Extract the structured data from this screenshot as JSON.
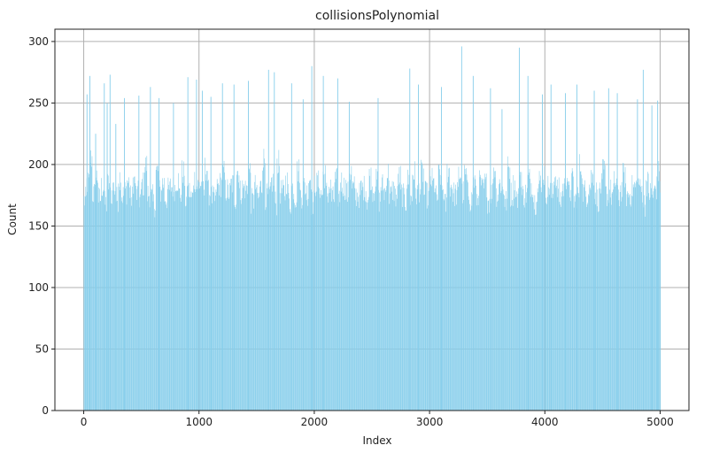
{
  "chart_data": {
    "type": "bar",
    "title": "collisionsPolynomial",
    "xlabel": "Index",
    "ylabel": "Count",
    "xlim": [
      -250,
      5250
    ],
    "ylim": [
      0,
      310
    ],
    "xticks": [
      0,
      1000,
      2000,
      3000,
      4000,
      5000
    ],
    "yticks": [
      0,
      50,
      100,
      150,
      200,
      250,
      300
    ],
    "grid": true,
    "bar_color": "#87ceeb",
    "series": [
      {
        "x_start": 0,
        "x_step": 25,
        "values": [
          171,
          185,
          205,
          176,
          190,
          172,
          182,
          168,
          184,
          177,
          181,
          172,
          190,
          175,
          178,
          186,
          173,
          187,
          176,
          172,
          184,
          199,
          176,
          173,
          168,
          195,
          178,
          185,
          173,
          179,
          182,
          181,
          187,
          176,
          194,
          172,
          178,
          173,
          188,
          183,
          184,
          177,
          197,
          177,
          173,
          171,
          182,
          184,
          193,
          179,
          177,
          184,
          173,
          195,
          178,
          181,
          180,
          195,
          170,
          182,
          173,
          182,
          205,
          174,
          175,
          186,
          169,
          201,
          178,
          177,
          186,
          169,
          181,
          174,
          195,
          175,
          182,
          177,
          189,
          169,
          184,
          185,
          176,
          191,
          177,
          181,
          172,
          187,
          174,
          186,
          182,
          176,
          194,
          181,
          175,
          175,
          180,
          181,
          172,
          190,
          180,
          186,
          171,
          183,
          178,
          193,
          175,
          179,
          174,
          190,
          176,
          170,
          187,
          172,
          193,
          176,
          180,
          193,
          176,
          175,
          187,
          184,
          173,
          191,
          180,
          167,
          195,
          183,
          176,
          176,
          192,
          177,
          191,
          177,
          171,
          186,
          173,
          185,
          180,
          184,
          171,
          177,
          197,
          176,
          184,
          180,
          170,
          197,
          176,
          183,
          172,
          192,
          175,
          176,
          188,
          184,
          170,
          179,
          187,
          192,
          178,
          182,
          175,
          191,
          179,
          172,
          181,
          190,
          177,
          187,
          171,
          175,
          199,
          178,
          176,
          183,
          190,
          177,
          172,
          182,
          194,
          176,
          178,
          175,
          186,
          173,
          180,
          191,
          175,
          176,
          181,
          182,
          185,
          179,
          168,
          185,
          177,
          175,
          181,
          193,
          180
        ]
      }
    ],
    "spikes": [
      {
        "x": 25,
        "y": 257
      },
      {
        "x": 50,
        "y": 272
      },
      {
        "x": 100,
        "y": 225
      },
      {
        "x": 175,
        "y": 266
      },
      {
        "x": 200,
        "y": 250
      },
      {
        "x": 225,
        "y": 273
      },
      {
        "x": 275,
        "y": 233
      },
      {
        "x": 350,
        "y": 254
      },
      {
        "x": 475,
        "y": 256
      },
      {
        "x": 575,
        "y": 263
      },
      {
        "x": 650,
        "y": 254
      },
      {
        "x": 775,
        "y": 250
      },
      {
        "x": 900,
        "y": 271
      },
      {
        "x": 975,
        "y": 269
      },
      {
        "x": 1025,
        "y": 260
      },
      {
        "x": 1100,
        "y": 255
      },
      {
        "x": 1200,
        "y": 266
      },
      {
        "x": 1300,
        "y": 265
      },
      {
        "x": 1425,
        "y": 268
      },
      {
        "x": 1600,
        "y": 277
      },
      {
        "x": 1650,
        "y": 275
      },
      {
        "x": 1800,
        "y": 266
      },
      {
        "x": 1900,
        "y": 253
      },
      {
        "x": 1975,
        "y": 280
      },
      {
        "x": 2075,
        "y": 272
      },
      {
        "x": 2200,
        "y": 270
      },
      {
        "x": 2300,
        "y": 251
      },
      {
        "x": 2550,
        "y": 254
      },
      {
        "x": 2825,
        "y": 278
      },
      {
        "x": 2900,
        "y": 265
      },
      {
        "x": 3100,
        "y": 263
      },
      {
        "x": 3275,
        "y": 296
      },
      {
        "x": 3375,
        "y": 272
      },
      {
        "x": 3525,
        "y": 262
      },
      {
        "x": 3625,
        "y": 245
      },
      {
        "x": 3775,
        "y": 295
      },
      {
        "x": 3850,
        "y": 272
      },
      {
        "x": 3975,
        "y": 257
      },
      {
        "x": 4050,
        "y": 265
      },
      {
        "x": 4175,
        "y": 258
      },
      {
        "x": 4275,
        "y": 265
      },
      {
        "x": 4425,
        "y": 260
      },
      {
        "x": 4550,
        "y": 262
      },
      {
        "x": 4625,
        "y": 258
      },
      {
        "x": 4800,
        "y": 253
      },
      {
        "x": 4850,
        "y": 277
      },
      {
        "x": 4925,
        "y": 248
      },
      {
        "x": 4975,
        "y": 252
      }
    ]
  }
}
